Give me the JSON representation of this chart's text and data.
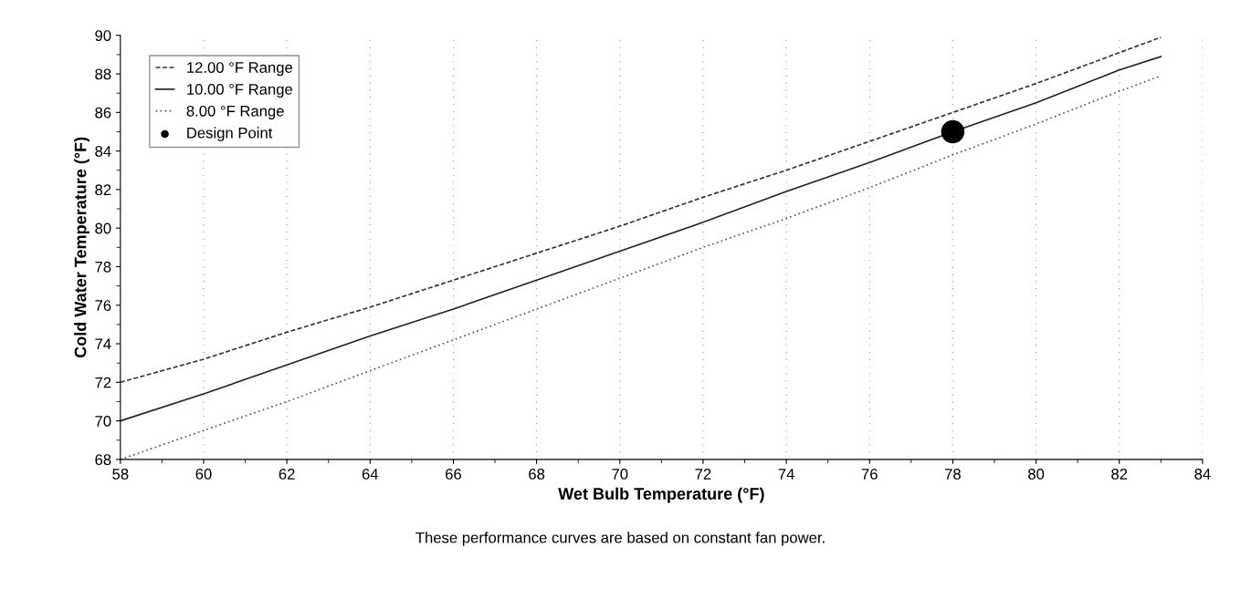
{
  "chart_data": {
    "type": "line",
    "xlabel": "Wet Bulb Temperature (°F)",
    "ylabel": "Cold Water Temperature (°F)",
    "annotations": [
      "These performance curves are based on constant fan power."
    ],
    "xlim": [
      58,
      84
    ],
    "xticks": [
      58,
      60,
      62,
      64,
      66,
      68,
      70,
      72,
      74,
      76,
      78,
      80,
      82,
      84
    ],
    "ylim": [
      68,
      90
    ],
    "yticks": [
      68,
      70,
      72,
      74,
      76,
      78,
      80,
      82,
      84,
      86,
      88,
      90
    ],
    "grid": "x",
    "legend": "top left",
    "series": [
      {
        "name": "12.00 °F Range",
        "color": "#333333",
        "line_style": "dashed",
        "x": [
          58,
          60,
          62,
          64,
          66,
          68,
          70,
          72,
          74,
          76,
          78,
          80,
          82,
          83
        ],
        "values": [
          72.0,
          73.2,
          74.6,
          75.9,
          77.3,
          78.7,
          80.1,
          81.6,
          83.0,
          84.5,
          86.0,
          87.5,
          89.1,
          89.9
        ]
      },
      {
        "name": "10.00 °F Range",
        "color": "#222222",
        "line_style": "solid",
        "x": [
          58,
          60,
          62,
          64,
          66,
          68,
          70,
          72,
          74,
          76,
          78,
          80,
          82,
          83
        ],
        "values": [
          70.0,
          71.4,
          72.9,
          74.4,
          75.8,
          77.3,
          78.8,
          80.3,
          81.9,
          83.4,
          85.0,
          86.5,
          88.2,
          88.9
        ]
      },
      {
        "name": "8.00 °F Range",
        "color": "#555555",
        "line_style": "dotted",
        "x": [
          58,
          60,
          62,
          64,
          66,
          68,
          70,
          72,
          74,
          76,
          78,
          80,
          82,
          83
        ],
        "values": [
          68.0,
          69.5,
          71.0,
          72.6,
          74.2,
          75.8,
          77.4,
          79.0,
          80.5,
          82.1,
          83.8,
          85.4,
          87.1,
          87.9
        ]
      },
      {
        "name": "Design Point",
        "type": "scatter",
        "marker": "circle",
        "color": "#000000",
        "x": [
          78
        ],
        "values": [
          85.0
        ]
      }
    ]
  }
}
